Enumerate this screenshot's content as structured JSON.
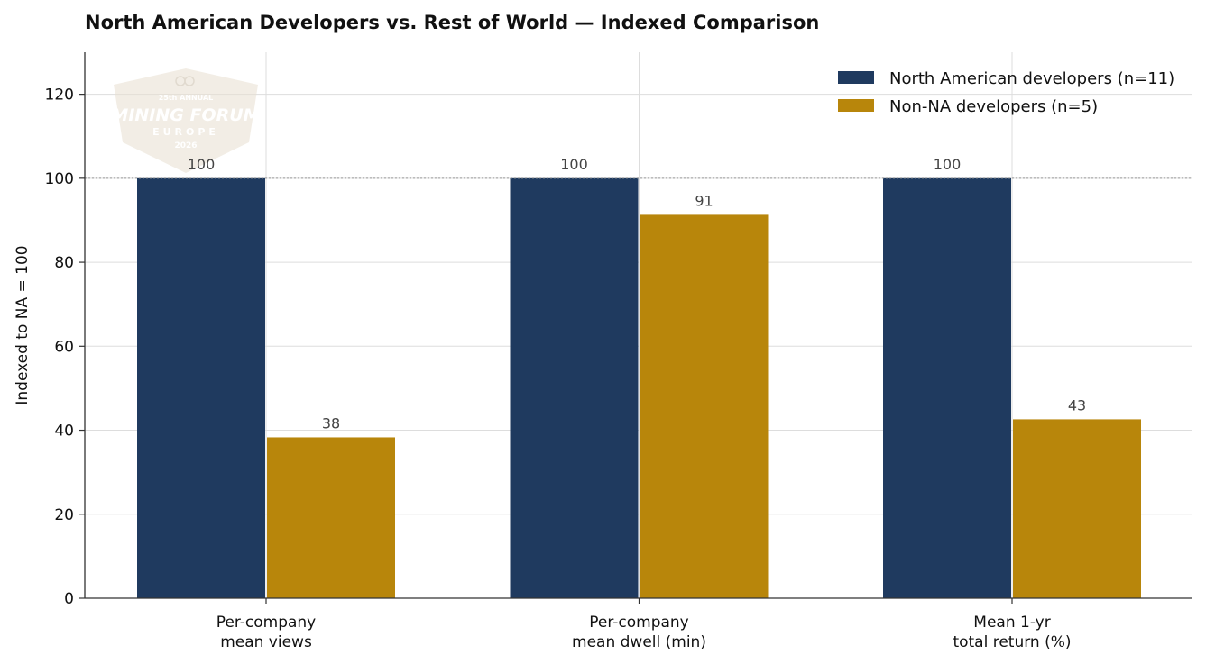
{
  "watermark": {
    "line1": "25th ANNUAL",
    "line2": "MINING FORUM",
    "line3": "EUROPE",
    "line4": "2026"
  },
  "colors": {
    "series_0": "#1f3a5f",
    "series_1": "#b8860b",
    "grid": "#dddddd",
    "axis": "#333333",
    "reference_line": "#999999"
  },
  "chart_data": {
    "type": "bar",
    "title": "North American Developers vs. Rest of World — Indexed Comparison",
    "xlabel": "",
    "ylabel": "Indexed to NA = 100",
    "categories": [
      [
        "Per-company",
        "mean views"
      ],
      [
        "Per-company",
        "mean dwell (min)"
      ],
      [
        "Mean 1-yr",
        "total return (%)"
      ]
    ],
    "series": [
      {
        "name": "North American developers (n=11)",
        "values": [
          100,
          100,
          100
        ],
        "labels": [
          "100",
          "100",
          "100"
        ]
      },
      {
        "name": "Non-NA developers (n=5)",
        "values": [
          38.3,
          91.3,
          42.6
        ],
        "labels": [
          "38",
          "91",
          "43"
        ]
      }
    ],
    "ylim": [
      0,
      130
    ],
    "yticks": [
      0,
      20,
      40,
      60,
      80,
      100,
      120
    ],
    "reference_line": 100,
    "grid": true,
    "legend_position": "top-right"
  }
}
